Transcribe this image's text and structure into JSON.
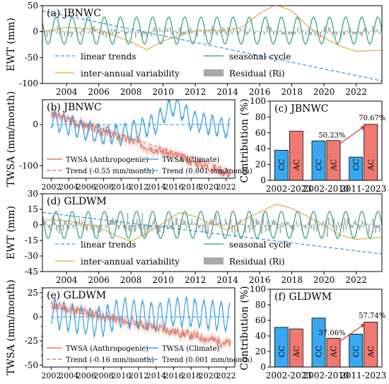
{
  "colors": {
    "trend_line": "#3d8fd6",
    "seasonal": "#2a9d7c",
    "interannual": "#e0a94a",
    "residual": "#a9a9a9",
    "anthropogenic": "#e07a6a",
    "climate": "#3aa0e6",
    "cc_bar": "#3aa8f0",
    "ac_bar": "#f07a72"
  },
  "chart_data": [
    {
      "id": "a",
      "type": "line",
      "title": "(a) JBNWC",
      "xlabel": "",
      "ylabel": "EWT (mm)",
      "xlim": [
        2002.5,
        2023.6
      ],
      "ylim": [
        -100,
        50
      ],
      "yticks": [
        -100,
        -50,
        0,
        50
      ],
      "xticks": [
        2004,
        2006,
        2008,
        2010,
        2012,
        2014,
        2016,
        2018,
        2020,
        2022
      ],
      "legend": [
        "linear trends",
        "seasonal cycle",
        "inter-annual variability",
        "Residual (Ri)"
      ],
      "series": [
        {
          "name": "linear trends",
          "kind": "trend",
          "x": [
            2002.5,
            2023.6
          ],
          "y": [
            40,
            -95
          ]
        },
        {
          "name": "seasonal cycle",
          "kind": "seasonal",
          "amplitude": 26,
          "offset": 2
        },
        {
          "name": "inter-annual variability",
          "kind": "interannual",
          "x": [
            2002.5,
            2004,
            2006,
            2008,
            2009,
            2010,
            2012,
            2014,
            2015,
            2016,
            2017,
            2018,
            2019,
            2020,
            2021,
            2022,
            2023.6
          ],
          "y": [
            0,
            8,
            4,
            -20,
            -35,
            -18,
            2,
            2,
            10,
            35,
            52,
            40,
            10,
            -12,
            -28,
            -38,
            -36
          ]
        },
        {
          "name": "Residual (Ri)",
          "kind": "residual",
          "amplitude": 10
        }
      ]
    },
    {
      "id": "b",
      "type": "line",
      "title": "(b) JBNWC",
      "xlabel": "",
      "ylabel": "TWSA (mm/month)",
      "xlim": [
        2001,
        2023
      ],
      "ylim": [
        -130,
        60
      ],
      "yticks": [
        -100,
        0
      ],
      "xticks": [
        2002,
        2004,
        2006,
        2008,
        2010,
        2012,
        2014,
        2016,
        2018,
        2020,
        2022
      ],
      "legend": [
        "TWSA (Anthropogenic)",
        "TWSA (Climate)",
        "Trend (-0.55 mm/month)",
        "Trend (0.001 mm/month)"
      ],
      "series": [
        {
          "name": "TWSA (Anthropogenic)",
          "kind": "anthro",
          "x": [
            2002,
            2022.5
          ],
          "y": [
            25,
            -120
          ]
        },
        {
          "name": "TWSA (Climate)",
          "kind": "climate",
          "x": [
            2002,
            2004,
            2006,
            2008,
            2010,
            2012,
            2014,
            2015,
            2016,
            2017,
            2018,
            2020,
            2022.5
          ],
          "y": [
            10,
            0,
            -15,
            -25,
            -25,
            -10,
            0,
            30,
            45,
            35,
            10,
            0,
            -10
          ]
        },
        {
          "name": "Trend (-0.55 mm/month)",
          "kind": "trend_anthro",
          "x": [
            2002,
            2022.5
          ],
          "y": [
            28,
            -110
          ]
        },
        {
          "name": "Trend (0.001 mm/month)",
          "kind": "trend_climate",
          "x": [
            2002,
            2022.5
          ],
          "y": [
            0,
            0
          ]
        }
      ]
    },
    {
      "id": "c",
      "type": "bar",
      "title": "(c) JBNWC",
      "ylabel": "Contribution (%)",
      "ylim": [
        0,
        100
      ],
      "yticks": [
        0,
        20,
        40,
        60,
        80,
        100
      ],
      "categories": [
        "2002-2023",
        "2002-2010",
        "2011-2023"
      ],
      "series": [
        {
          "name": "CC",
          "values": [
            38,
            49.77,
            29.33
          ]
        },
        {
          "name": "AC",
          "values": [
            62,
            50.23,
            70.67
          ]
        }
      ],
      "annotations": [
        "50.23%",
        "70.67%"
      ]
    },
    {
      "id": "d",
      "type": "line",
      "title": "(d) GLDWM",
      "xlabel": "",
      "ylabel": "EWT (mm)",
      "xlim": [
        2002.5,
        2023.6
      ],
      "ylim": [
        -45,
        30
      ],
      "yticks": [
        -45,
        -30,
        -15,
        0,
        15,
        30
      ],
      "xticks": [
        2004,
        2006,
        2008,
        2010,
        2012,
        2014,
        2016,
        2018,
        2020,
        2022
      ],
      "legend": [
        "linear trends",
        "seasonal cycle",
        "inter-annual variability",
        "Residual (Ri)"
      ],
      "series": [
        {
          "name": "linear trends",
          "kind": "trend",
          "x": [
            2002.5,
            2023.6
          ],
          "y": [
            12,
            -28
          ]
        },
        {
          "name": "seasonal cycle",
          "kind": "seasonal",
          "amplitude": 13,
          "offset": 0
        },
        {
          "name": "inter-annual variability",
          "kind": "interannual",
          "x": [
            2002.5,
            2004,
            2006,
            2007,
            2008,
            2009,
            2010,
            2011,
            2012,
            2014,
            2015,
            2016,
            2017,
            2018,
            2019,
            2020,
            2021,
            2022,
            2023.6
          ],
          "y": [
            5,
            4,
            -2,
            -10,
            -16,
            -8,
            2,
            12,
            8,
            -5,
            5,
            12,
            20,
            16,
            8,
            0,
            -10,
            -14,
            -12
          ]
        },
        {
          "name": "Residual (Ri)",
          "kind": "residual",
          "amplitude": 9
        }
      ]
    },
    {
      "id": "e",
      "type": "line",
      "title": "(e) GLDWM",
      "xlabel": "",
      "ylabel": "TWSA (mm/month)",
      "xlim": [
        2001,
        2023
      ],
      "ylim": [
        -52,
        30
      ],
      "yticks": [
        -50,
        -25,
        0,
        25
      ],
      "extra_yticks": [
        -40,
        -30,
        -20,
        -10,
        10,
        20,
        30
      ],
      "xticks": [
        2002,
        2004,
        2006,
        2008,
        2010,
        2012,
        2014,
        2016,
        2018,
        2020,
        2022
      ],
      "legend": [
        "TWSA (Anthropogenic)",
        "TWSA (Climate)",
        "Trend (-0.16 mm/month)",
        "Trend (0.001 mm/month)"
      ],
      "series": [
        {
          "name": "TWSA (Anthropogenic)",
          "kind": "anthro",
          "x": [
            2002,
            2022.5
          ],
          "y": [
            12,
            -28
          ]
        },
        {
          "name": "TWSA (Climate)",
          "kind": "climate",
          "x": [
            2002,
            2004,
            2006,
            2008,
            2010,
            2012,
            2014,
            2016,
            2018,
            2020,
            2022.5
          ],
          "y": [
            5,
            0,
            -5,
            -5,
            5,
            2,
            0,
            5,
            5,
            2,
            0
          ]
        },
        {
          "name": "Trend (-0.16 mm/month)",
          "kind": "trend_anthro",
          "x": [
            2002,
            2022.5
          ],
          "y": [
            10,
            -28
          ]
        },
        {
          "name": "Trend (0.001 mm/month)",
          "kind": "trend_climate",
          "x": [
            2002,
            2022.5
          ],
          "y": [
            0,
            0
          ]
        }
      ]
    },
    {
      "id": "f",
      "type": "bar",
      "title": "(f) GLDWM",
      "ylabel": "Contribution (%)",
      "ylim": [
        0,
        100
      ],
      "yticks": [
        0,
        20,
        40,
        60,
        80,
        100
      ],
      "categories": [
        "2002-2023",
        "2002-2010",
        "2011-2023"
      ],
      "series": [
        {
          "name": "CC",
          "values": [
            51,
            62.94,
            42.26
          ]
        },
        {
          "name": "AC",
          "values": [
            49,
            37.06,
            57.74
          ]
        }
      ],
      "annotations": [
        "37.06%",
        "57.74%"
      ]
    }
  ]
}
